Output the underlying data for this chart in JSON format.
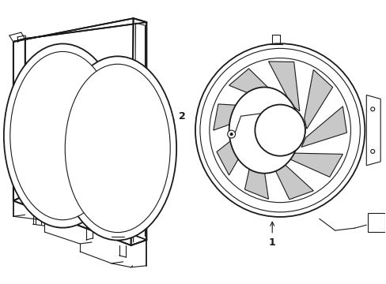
{
  "bg_color": "#ffffff",
  "line_color": "#1a1a1a",
  "lw_main": 1.3,
  "lw_thin": 0.8,
  "fig_width": 4.89,
  "fig_height": 3.6,
  "dpi": 100,
  "label1_text": "1",
  "label2_text": "2"
}
